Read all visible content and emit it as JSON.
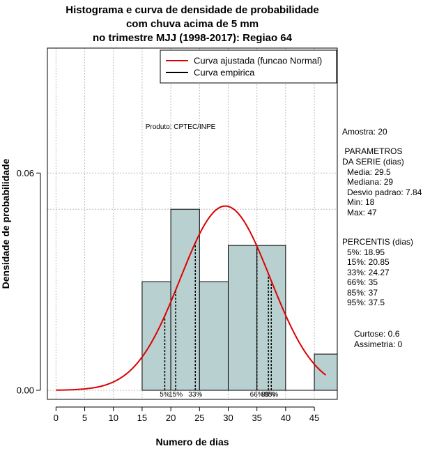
{
  "chart_data": {
    "type": "bar",
    "title_lines": [
      "Histograma e curva de densidade de probabilidade",
      "com chuva acima de 5 mm",
      "no trimestre MJJ (1998-2017): Regiao 64"
    ],
    "xlabel": "Numero de dias",
    "ylabel": "Densidade de probabilidade",
    "xlim": [
      -1.5,
      49
    ],
    "ylim": [
      -0.0025,
      0.0945
    ],
    "x_ticks": [
      "0",
      "5",
      "10",
      "15",
      "20",
      "25",
      "30",
      "35",
      "40",
      "45"
    ],
    "y_ticks": [
      "0.00",
      "0.06"
    ],
    "hist_bins": [
      {
        "from": 15,
        "to": 20,
        "density": 0.03
      },
      {
        "from": 20,
        "to": 25,
        "density": 0.05
      },
      {
        "from": 25,
        "to": 30,
        "density": 0.03
      },
      {
        "from": 30,
        "to": 35,
        "density": 0.04
      },
      {
        "from": 35,
        "to": 40,
        "density": 0.04
      },
      {
        "from": 40,
        "to": 45,
        "density": 0.0
      },
      {
        "from": 45,
        "to": 50,
        "density": 0.01
      }
    ],
    "dotted_hline_density": 0.05,
    "normal_fit": {
      "mean": 29.5,
      "sd": 7.84
    },
    "curve_range": [
      0,
      47
    ],
    "percentile_markers": [
      {
        "x": 18.95,
        "label": "5%"
      },
      {
        "x": 20.85,
        "label": "15%"
      },
      {
        "x": 24.27,
        "label": "33%"
      },
      {
        "x": 35,
        "label": "66%"
      },
      {
        "x": 37,
        "label": "85%"
      },
      {
        "x": 37.5,
        "label": "95%"
      }
    ],
    "legend": [
      {
        "label": "Curva ajustada (funcao Normal)",
        "color": "#dd0000"
      },
      {
        "label": "Curva empirica",
        "color": "#000000"
      }
    ],
    "annotation": "Produto: CPTEC/INPE",
    "colors": {
      "bar_fill": "#b9d0d0",
      "bar_stroke": "#000000",
      "fit_curve": "#dd0000",
      "grid": "#bbbbbb"
    }
  },
  "stats": {
    "amostra": "Amostra: 20",
    "parametros_title": " PARAMETROS",
    "parametros_subtitle": "DA SERIE (dias)",
    "media": "Media: 29.5",
    "mediana": "Mediana: 29",
    "desvio": "Desvio padrao: 7.84",
    "min": "Min: 18",
    "max": "Max: 47",
    "percentis_title": "PERCENTIS (dias)",
    "p5": "5%: 18.95",
    "p15": "15%: 20.85",
    "p33": "33%: 24.27",
    "p66": "66%: 35",
    "p85": "85%: 37",
    "p95": "95%: 37.5",
    "curtose": "Curtose: 0.6",
    "assimetria": "Assimetria: 0"
  }
}
